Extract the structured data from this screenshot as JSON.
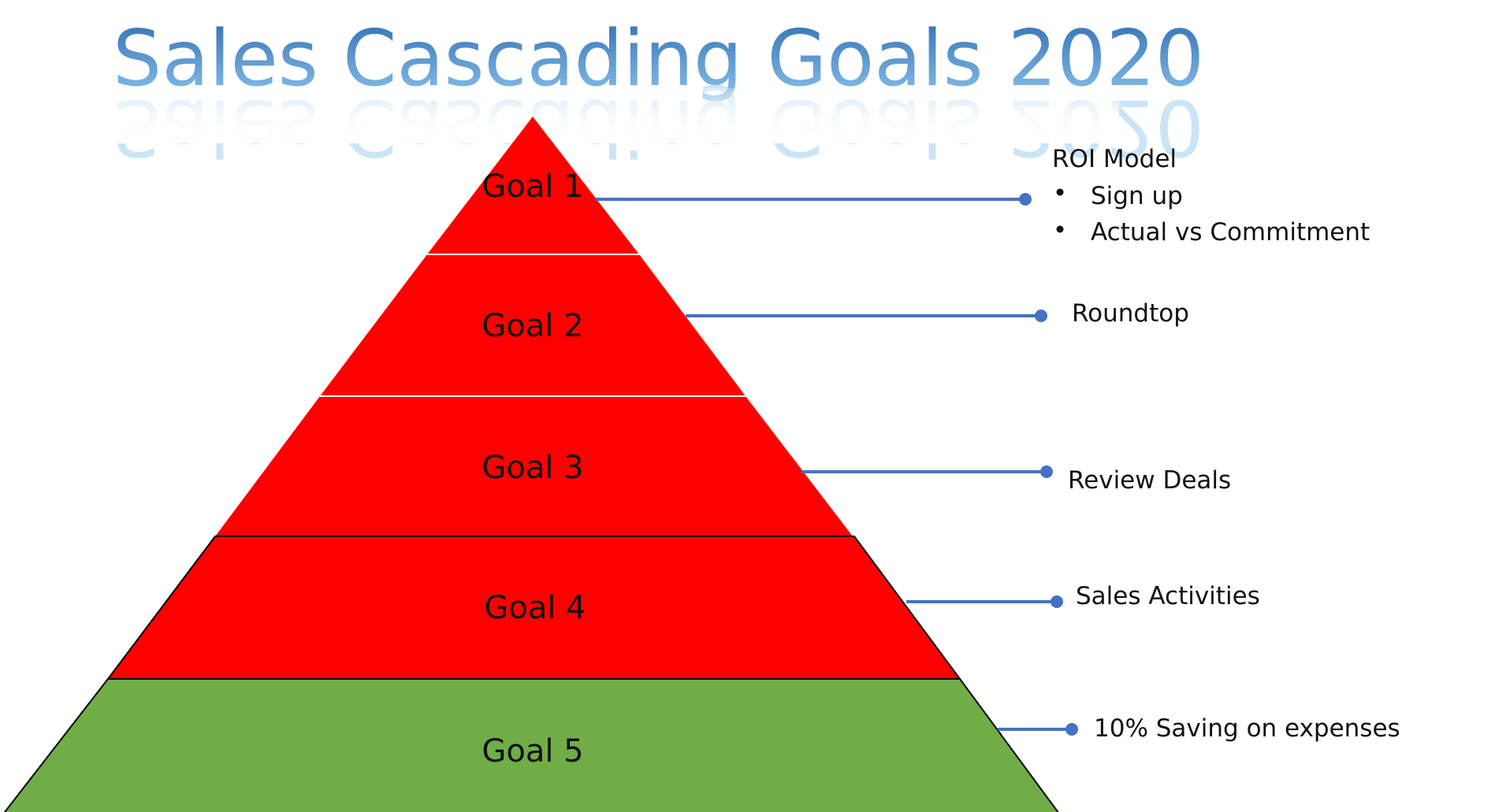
{
  "title": "Sales Cascading Goals 2020",
  "colors": {
    "title_top": "#2f6db3",
    "title_bottom": "#8ec5ec",
    "goal_red": "#ff0000",
    "goal_green": "#70ad47",
    "connector": "#4472c4",
    "outline": "#000000"
  },
  "goals": [
    {
      "label": "Goal 1",
      "status": "red"
    },
    {
      "label": "Goal 2",
      "status": "red"
    },
    {
      "label": "Goal 3",
      "status": "red"
    },
    {
      "label": "Goal 4",
      "status": "red"
    },
    {
      "label": "Goal 5",
      "status": "green"
    }
  ],
  "notes": [
    {
      "heading": "ROI  Model",
      "bullets": [
        "Sign up",
        "Actual vs Commitment"
      ]
    },
    {
      "heading": "Roundtop",
      "bullets": []
    },
    {
      "heading": "Review Deals",
      "bullets": []
    },
    {
      "heading": "Sales Activities",
      "bullets": []
    },
    {
      "heading": "10% Saving on expenses",
      "bullets": []
    }
  ]
}
